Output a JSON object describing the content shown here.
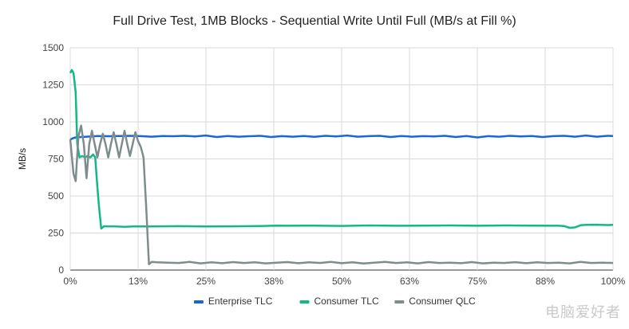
{
  "chart_data": {
    "type": "line",
    "title": "Full Drive Test, 1MB Blocks - Sequential Write Until Full (MB/s at Fill %)",
    "xlabel": "",
    "ylabel": "MB/s",
    "xlim": [
      0,
      100
    ],
    "ylim": [
      0,
      1500
    ],
    "x_ticks": [
      "0%",
      "13%",
      "25%",
      "38%",
      "50%",
      "63%",
      "75%",
      "88%",
      "100%"
    ],
    "y_ticks": [
      "0",
      "250",
      "500",
      "750",
      "1000",
      "1250",
      "1500"
    ],
    "grid": true,
    "legend_position": "bottom",
    "series": [
      {
        "name": "Enterprise TLC",
        "color": "#1a66d9",
        "points": [
          [
            0,
            880
          ],
          [
            0.5,
            890
          ],
          [
            1,
            895
          ],
          [
            2,
            898
          ],
          [
            3,
            900
          ],
          [
            4,
            902
          ],
          [
            5,
            905
          ],
          [
            7,
            903
          ],
          [
            9,
            905
          ],
          [
            11,
            906
          ],
          [
            13,
            904
          ],
          [
            15,
            900
          ],
          [
            17,
            905
          ],
          [
            19,
            903
          ],
          [
            21,
            906
          ],
          [
            23,
            902
          ],
          [
            25,
            908
          ],
          [
            27,
            898
          ],
          [
            29,
            905
          ],
          [
            31,
            900
          ],
          [
            33,
            903
          ],
          [
            35,
            906
          ],
          [
            37,
            898
          ],
          [
            39,
            904
          ],
          [
            41,
            900
          ],
          [
            43,
            905
          ],
          [
            45,
            899
          ],
          [
            47,
            906
          ],
          [
            49,
            902
          ],
          [
            51,
            908
          ],
          [
            53,
            900
          ],
          [
            55,
            904
          ],
          [
            57,
            906
          ],
          [
            59,
            898
          ],
          [
            61,
            905
          ],
          [
            63,
            900
          ],
          [
            65,
            904
          ],
          [
            67,
            902
          ],
          [
            69,
            906
          ],
          [
            71,
            898
          ],
          [
            73,
            905
          ],
          [
            75,
            895
          ],
          [
            77,
            904
          ],
          [
            79,
            900
          ],
          [
            81,
            906
          ],
          [
            83,
            902
          ],
          [
            85,
            905
          ],
          [
            87,
            898
          ],
          [
            89,
            904
          ],
          [
            91,
            906
          ],
          [
            93,
            900
          ],
          [
            95,
            908
          ],
          [
            97,
            900
          ],
          [
            99,
            906
          ],
          [
            100,
            905
          ]
        ]
      },
      {
        "name": "Consumer TLC",
        "color": "#12b886",
        "points": [
          [
            0,
            1330
          ],
          [
            0.3,
            1350
          ],
          [
            0.6,
            1330
          ],
          [
            1,
            1200
          ],
          [
            1.3,
            850
          ],
          [
            1.7,
            760
          ],
          [
            2.2,
            770
          ],
          [
            2.7,
            760
          ],
          [
            3.2,
            770
          ],
          [
            3.7,
            760
          ],
          [
            4.2,
            780
          ],
          [
            4.6,
            760
          ],
          [
            5,
            560
          ],
          [
            5.3,
            430
          ],
          [
            5.7,
            280
          ],
          [
            6.2,
            295
          ],
          [
            8,
            295
          ],
          [
            10,
            292
          ],
          [
            12,
            295
          ],
          [
            15,
            294
          ],
          [
            20,
            296
          ],
          [
            25,
            294
          ],
          [
            30,
            295
          ],
          [
            35,
            297
          ],
          [
            38,
            300
          ],
          [
            40,
            299
          ],
          [
            45,
            300
          ],
          [
            50,
            298
          ],
          [
            55,
            301
          ],
          [
            60,
            299
          ],
          [
            65,
            300
          ],
          [
            70,
            301
          ],
          [
            75,
            299
          ],
          [
            80,
            301
          ],
          [
            85,
            300
          ],
          [
            90,
            299
          ],
          [
            91,
            297
          ],
          [
            92,
            285
          ],
          [
            93,
            288
          ],
          [
            94,
            302
          ],
          [
            95,
            305
          ],
          [
            97,
            306
          ],
          [
            99,
            304
          ],
          [
            100,
            305
          ]
        ]
      },
      {
        "name": "Consumer QLC",
        "color": "#7f8c8d",
        "points": [
          [
            0,
            880
          ],
          [
            0.6,
            650
          ],
          [
            1,
            600
          ],
          [
            1.5,
            900
          ],
          [
            2,
            975
          ],
          [
            2.5,
            850
          ],
          [
            3,
            620
          ],
          [
            3.5,
            850
          ],
          [
            4,
            940
          ],
          [
            4.5,
            850
          ],
          [
            5,
            760
          ],
          [
            5.5,
            850
          ],
          [
            6,
            920
          ],
          [
            6.5,
            850
          ],
          [
            7,
            760
          ],
          [
            7.5,
            850
          ],
          [
            8,
            930
          ],
          [
            8.5,
            850
          ],
          [
            9,
            760
          ],
          [
            9.5,
            850
          ],
          [
            10,
            940
          ],
          [
            10.5,
            850
          ],
          [
            11,
            770
          ],
          [
            11.5,
            850
          ],
          [
            12,
            930
          ],
          [
            12.5,
            870
          ],
          [
            13,
            830
          ],
          [
            13.5,
            760
          ],
          [
            14,
            420
          ],
          [
            14.5,
            40
          ],
          [
            15,
            55
          ],
          [
            16,
            52
          ],
          [
            18,
            50
          ],
          [
            20,
            48
          ],
          [
            22,
            55
          ],
          [
            24,
            45
          ],
          [
            26,
            52
          ],
          [
            28,
            46
          ],
          [
            30,
            54
          ],
          [
            32,
            48
          ],
          [
            34,
            52
          ],
          [
            36,
            45
          ],
          [
            38,
            50
          ],
          [
            40,
            54
          ],
          [
            42,
            46
          ],
          [
            44,
            52
          ],
          [
            46,
            48
          ],
          [
            48,
            55
          ],
          [
            50,
            46
          ],
          [
            52,
            52
          ],
          [
            54,
            44
          ],
          [
            56,
            50
          ],
          [
            58,
            55
          ],
          [
            60,
            48
          ],
          [
            62,
            52
          ],
          [
            64,
            45
          ],
          [
            66,
            54
          ],
          [
            68,
            48
          ],
          [
            70,
            50
          ],
          [
            72,
            46
          ],
          [
            74,
            54
          ],
          [
            76,
            45
          ],
          [
            78,
            50
          ],
          [
            80,
            48
          ],
          [
            82,
            53
          ],
          [
            84,
            46
          ],
          [
            86,
            52
          ],
          [
            88,
            48
          ],
          [
            90,
            50
          ],
          [
            92,
            45
          ],
          [
            94,
            55
          ],
          [
            96,
            48
          ],
          [
            98,
            50
          ],
          [
            100,
            48
          ]
        ]
      }
    ]
  },
  "watermark": "电脑爱好者"
}
